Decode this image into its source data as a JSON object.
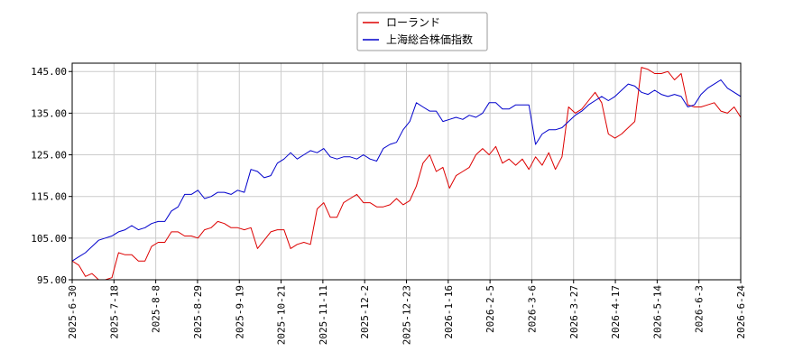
{
  "chart_data": {
    "type": "line",
    "title": "",
    "xlabel": "",
    "ylabel": "",
    "ylim": [
      95,
      147
    ],
    "yticks": [
      95,
      105,
      115,
      125,
      135,
      145
    ],
    "ytick_labels": [
      "95.00",
      "105.00",
      "115.00",
      "125.00",
      "135.00",
      "145.00"
    ],
    "xtick_labels": [
      "2025-6-30",
      "2025-7-18",
      "2025-8-8",
      "2025-8-29",
      "2025-9-19",
      "2025-10-21",
      "2025-11-11",
      "2025-12-2",
      "2025-12-23",
      "2026-1-16",
      "2026-2-5",
      "2026-3-6",
      "2026-3-27",
      "2026-4-17",
      "2026-5-14",
      "2026-6-3",
      "2026-6-24"
    ],
    "grid": true,
    "legend_position": "top-center",
    "series": [
      {
        "name": "ローランド",
        "color": "#dd0000",
        "values": [
          99.5,
          98.5,
          95.8,
          96.5,
          95.0,
          95.0,
          95.5,
          101.5,
          101.0,
          101.0,
          99.5,
          99.5,
          103.0,
          104.0,
          104.0,
          106.5,
          106.5,
          105.5,
          105.5,
          105.0,
          107.0,
          107.5,
          109.0,
          108.5,
          107.5,
          107.5,
          107.0,
          107.5,
          102.5,
          104.5,
          106.5,
          107.0,
          107.0,
          102.5,
          103.5,
          104.0,
          103.5,
          112.0,
          113.5,
          110.0,
          110.0,
          113.5,
          114.5,
          115.5,
          113.5,
          113.5,
          112.5,
          112.5,
          113.0,
          114.5,
          113.0,
          114.0,
          117.5,
          123.0,
          125.0,
          121.0,
          122.0,
          117.0,
          120.0,
          121.0,
          122.0,
          125.0,
          126.5,
          125.0,
          127.0,
          123.0,
          124.0,
          122.5,
          124.0,
          121.5,
          124.5,
          122.5,
          125.5,
          121.5,
          124.5,
          136.5,
          135.0,
          136.0,
          138.0,
          140.0,
          137.5,
          130.0,
          129.0,
          130.0,
          131.5,
          133.0,
          146.0,
          145.5,
          144.5,
          144.5,
          145.0,
          143.0,
          144.5,
          137.0,
          136.5,
          136.5,
          137.0,
          137.5,
          135.5,
          135.0,
          136.5,
          134.0
        ]
      },
      {
        "name": "上海総合株価指数",
        "color": "#0000cc",
        "values": [
          99.5,
          100.5,
          101.5,
          103.0,
          104.5,
          105.0,
          105.5,
          106.5,
          107.0,
          108.0,
          107.0,
          107.5,
          108.5,
          109.0,
          109.0,
          111.5,
          112.5,
          115.5,
          115.5,
          116.5,
          114.5,
          115.0,
          116.0,
          116.0,
          115.5,
          116.5,
          116.0,
          121.5,
          121.0,
          119.5,
          120.0,
          123.0,
          124.0,
          125.5,
          124.0,
          125.0,
          126.0,
          125.5,
          126.5,
          124.5,
          124.0,
          124.5,
          124.5,
          124.0,
          125.0,
          124.0,
          123.5,
          126.5,
          127.5,
          128.0,
          131.0,
          133.0,
          137.5,
          136.5,
          135.5,
          135.5,
          133.0,
          133.5,
          134.0,
          133.5,
          134.5,
          134.0,
          135.0,
          137.5,
          137.5,
          136.0,
          136.0,
          137.0,
          137.0,
          137.0,
          127.5,
          130.0,
          131.0,
          131.0,
          131.5,
          133.0,
          134.5,
          135.5,
          137.0,
          138.0,
          139.0,
          138.0,
          139.0,
          140.5,
          142.0,
          141.5,
          140.0,
          139.5,
          140.5,
          139.5,
          139.0,
          139.5,
          139.0,
          136.5,
          137.0,
          139.5,
          141.0,
          142.0,
          143.0,
          141.0,
          140.0,
          139.0
        ]
      }
    ]
  }
}
